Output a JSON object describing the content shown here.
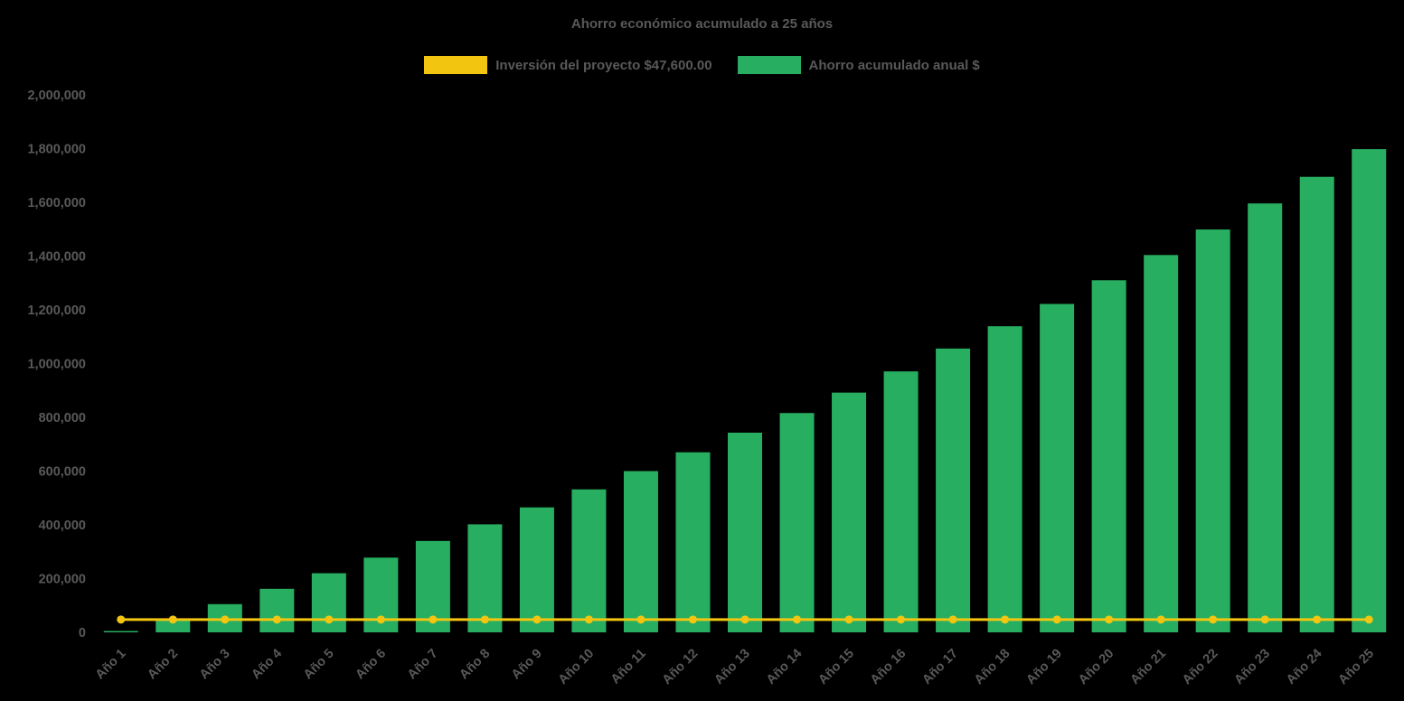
{
  "background": "#000000",
  "text_color": "#595959",
  "chart_data": {
    "type": "bar",
    "title": "Ahorro económico acumulado a 25 años",
    "legend_position": "top",
    "grid": false,
    "ylim": [
      0,
      2000000
    ],
    "ytick_interval": 200000,
    "ytick_labels": [
      "0",
      "200,000",
      "400,000",
      "600,000",
      "800,000",
      "1,000,000",
      "1,200,000",
      "1,400,000",
      "1,600,000",
      "1,800,000",
      "2,000,000"
    ],
    "categories": [
      "Año 1",
      "Año 2",
      "Año 3",
      "Año 4",
      "Año 5",
      "Año 6",
      "Año 7",
      "Año 8",
      "Año 9",
      "Año 10",
      "Año 11",
      "Año 12",
      "Año 13",
      "Año 14",
      "Año 15",
      "Año 16",
      "Año 17",
      "Año 18",
      "Año 19",
      "Año 20",
      "Año 21",
      "Año 22",
      "Año 23",
      "Año 24",
      "Año 25"
    ],
    "series": [
      {
        "name": "Inversión del proyecto $47,600.00",
        "type": "line",
        "color": "#F2C511",
        "values": [
          47600,
          47600,
          47600,
          47600,
          47600,
          47600,
          47600,
          47600,
          47600,
          47600,
          47600,
          47600,
          47600,
          47600,
          47600,
          47600,
          47600,
          47600,
          47600,
          47600,
          47600,
          47600,
          47600,
          47600,
          47600
        ]
      },
      {
        "name": "Ahorro acumulado anual $",
        "type": "bar",
        "color": "#27AE60",
        "values": [
          5000,
          52000,
          105000,
          162000,
          220000,
          278000,
          340000,
          402000,
          465000,
          532000,
          600000,
          670000,
          743000,
          816000,
          892000,
          971000,
          1056000,
          1139000,
          1222000,
          1310000,
          1404000,
          1499000,
          1596000,
          1695000,
          1798000
        ]
      }
    ]
  }
}
